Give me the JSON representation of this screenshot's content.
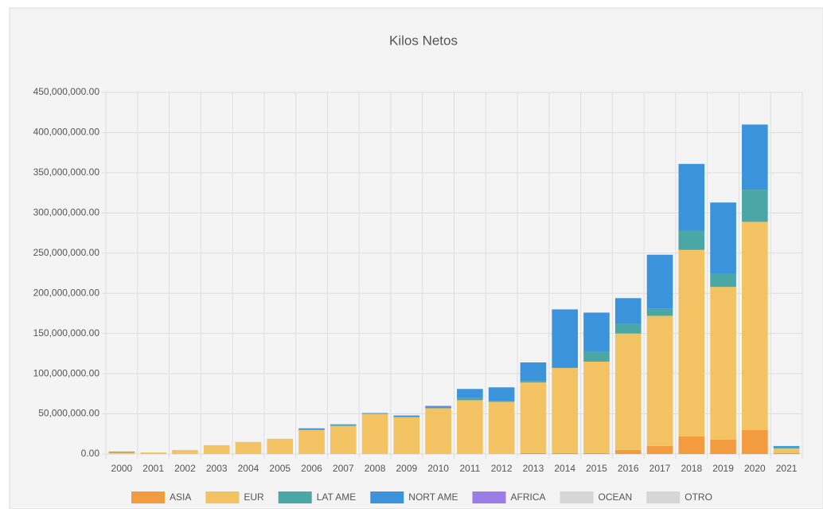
{
  "chart_data": {
    "type": "stacked-bar",
    "title": "Kilos Netos",
    "categories": [
      "2000",
      "2001",
      "2002",
      "2003",
      "2004",
      "2005",
      "2006",
      "2007",
      "2008",
      "2009",
      "2010",
      "2011",
      "2012",
      "2013",
      "2014",
      "2015",
      "2016",
      "2017",
      "2018",
      "2019",
      "2020",
      "2021"
    ],
    "series": [
      {
        "name": "ASIA",
        "color": "#f29b3f",
        "values": [
          0,
          0,
          0,
          0,
          0,
          0,
          0,
          0,
          0,
          0,
          0,
          0,
          0,
          1000000,
          1000000,
          1000000,
          5000000,
          10000000,
          22000000,
          18000000,
          30000000,
          1000000
        ]
      },
      {
        "name": "EUR",
        "color": "#f3c262",
        "values": [
          2000000,
          2000000,
          5000000,
          11000000,
          15000000,
          19000000,
          30000000,
          35000000,
          50000000,
          46000000,
          57000000,
          67000000,
          65000000,
          88000000,
          106000000,
          114000000,
          145000000,
          162000000,
          232000000,
          190000000,
          259000000,
          6000000
        ]
      },
      {
        "name": "LAT AME",
        "color": "#4aa7a6",
        "values": [
          1000000,
          0,
          0,
          0,
          0,
          0,
          0,
          1000000,
          0,
          0,
          1000000,
          3000000,
          1000000,
          2000000,
          1000000,
          12000000,
          12000000,
          9000000,
          24000000,
          17000000,
          40000000,
          2000000
        ]
      },
      {
        "name": "NORT AME",
        "color": "#3b93dc",
        "values": [
          0,
          0,
          0,
          0,
          0,
          0,
          2000000,
          1000000,
          1000000,
          2000000,
          1000000,
          11000000,
          17000000,
          23000000,
          72000000,
          49000000,
          32000000,
          67000000,
          83000000,
          88000000,
          81000000,
          1000000
        ]
      },
      {
        "name": "AFRICA",
        "color": "#9b7de8",
        "values": [
          0,
          0,
          0,
          0,
          0,
          0,
          0,
          0,
          0,
          0,
          1000000,
          0,
          0,
          0,
          0,
          0,
          0,
          0,
          0,
          0,
          0,
          0
        ]
      },
      {
        "name": "OCEAN",
        "color": "#d6d6d6",
        "values": [
          0,
          0,
          0,
          0,
          0,
          0,
          0,
          0,
          0,
          0,
          0,
          0,
          0,
          0,
          0,
          0,
          0,
          0,
          0,
          0,
          0,
          0
        ]
      },
      {
        "name": "OTRO",
        "color": "#d6d6d6",
        "values": [
          0,
          0,
          0,
          0,
          0,
          0,
          0,
          0,
          0,
          0,
          0,
          0,
          0,
          0,
          0,
          0,
          0,
          0,
          0,
          0,
          0,
          0
        ]
      }
    ],
    "ylim": [
      0,
      450000000
    ],
    "yticks": [
      {
        "value": 0,
        "label": "0.00"
      },
      {
        "value": 50000000,
        "label": "50,000,000.00"
      },
      {
        "value": 100000000,
        "label": "100,000,000.00"
      },
      {
        "value": 150000000,
        "label": "150,000,000.00"
      },
      {
        "value": 200000000,
        "label": "200,000,000.00"
      },
      {
        "value": 250000000,
        "label": "250,000,000.00"
      },
      {
        "value": 300000000,
        "label": "300,000,000.00"
      },
      {
        "value": 350000000,
        "label": "350,000,000.00"
      },
      {
        "value": 400000000,
        "label": "400,000,000.00"
      },
      {
        "value": 450000000,
        "label": "450,000,000.00"
      }
    ],
    "grid": true,
    "legend": "bottom"
  }
}
